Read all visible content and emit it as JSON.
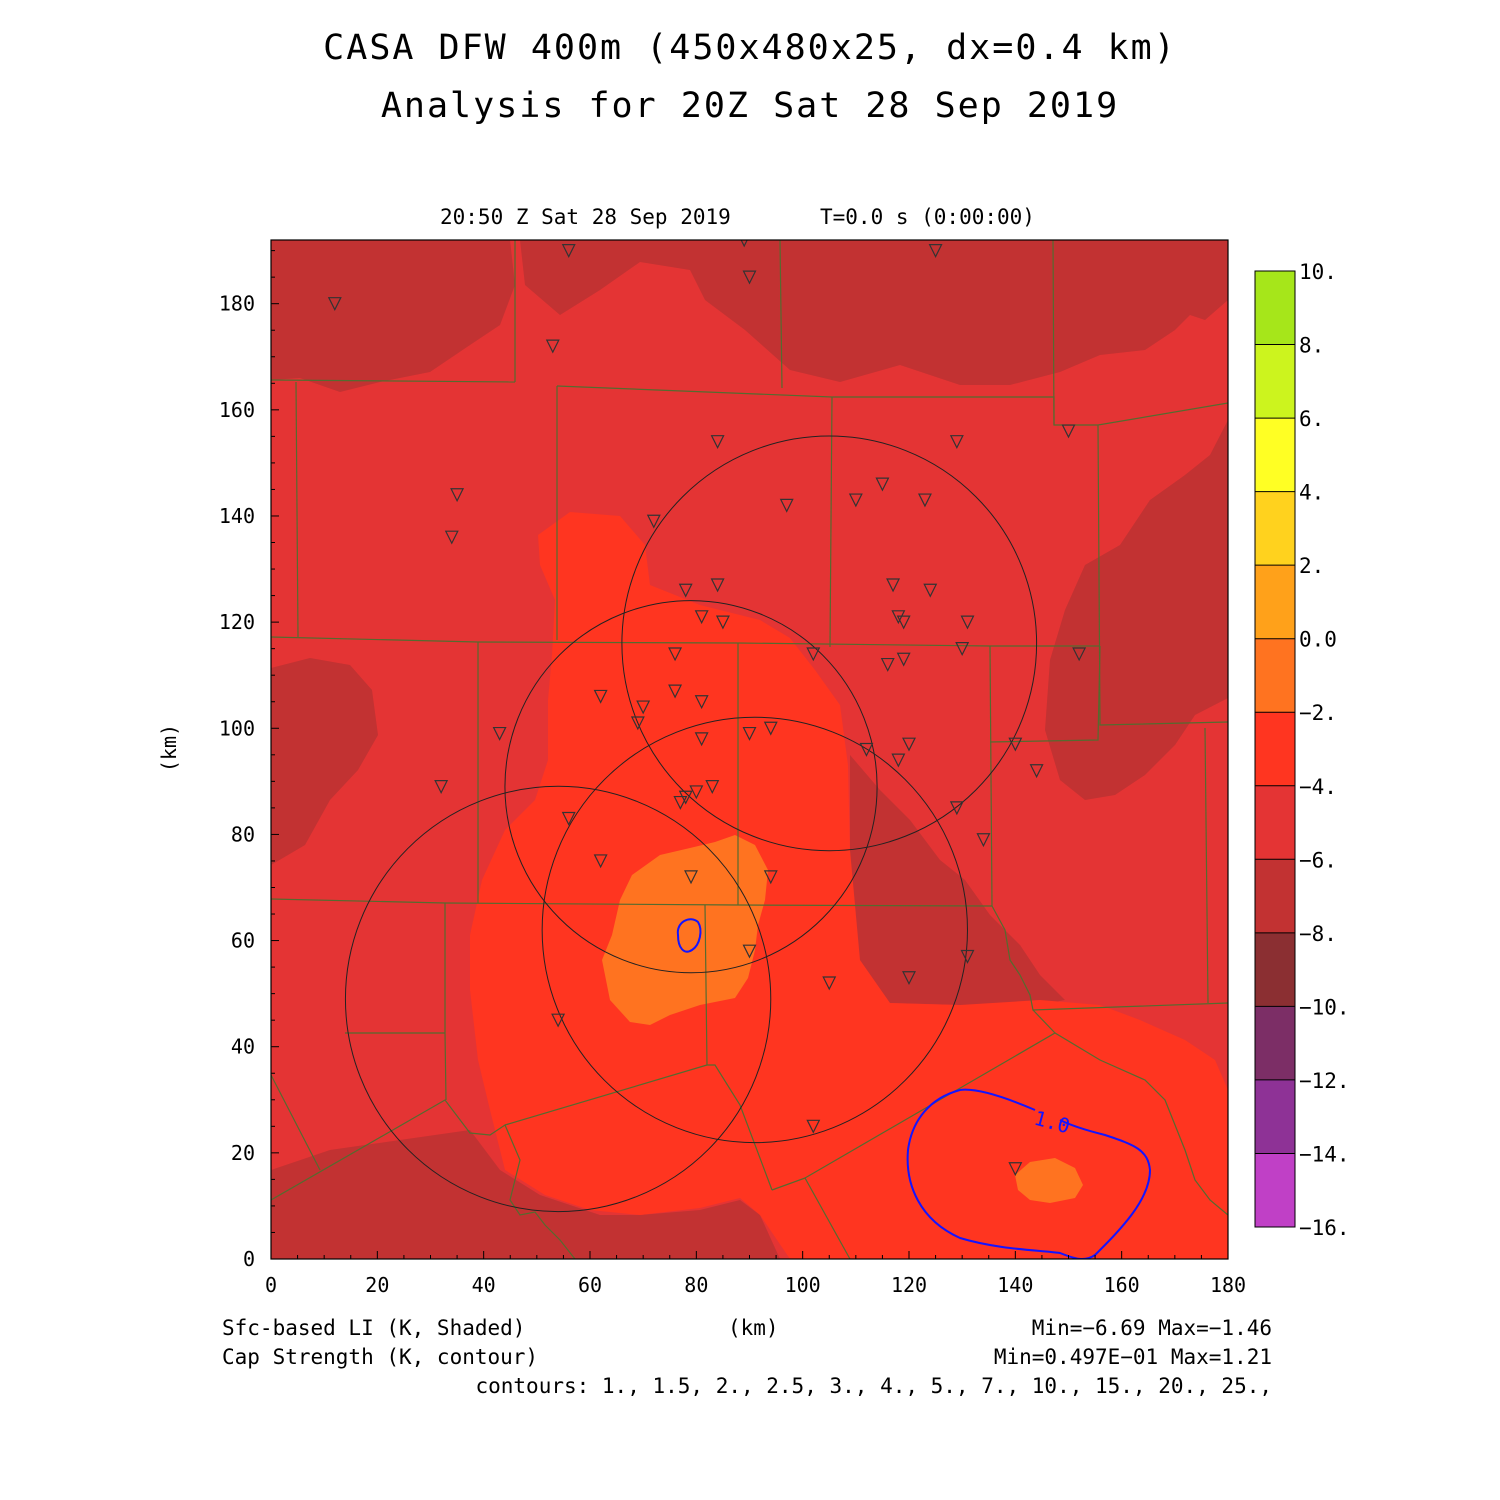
{
  "title_line1": "CASA DFW 400m (450x480x25, dx=0.4 km)",
  "title_line2": "Analysis for 20Z Sat 28 Sep 2019",
  "valid_time": "20:50 Z Sat 28 Sep 2019",
  "model_time": "T=0.0 s (0:00:00)",
  "x_axis": {
    "label": "(km)",
    "range": [
      0,
      180
    ],
    "ticks": [
      "0",
      "20",
      "40",
      "60",
      "80",
      "100",
      "120",
      "140",
      "160",
      "180"
    ]
  },
  "y_axis": {
    "label": "(km)",
    "range": [
      0,
      192
    ],
    "ticks": [
      "0",
      "20",
      "40",
      "60",
      "80",
      "100",
      "120",
      "140",
      "160",
      "180"
    ]
  },
  "colorbar": {
    "labels": [
      "10.",
      "8.",
      "6.",
      "4.",
      "2.",
      "0.0",
      "−2.",
      "−4.",
      "−6.",
      "−8.",
      "−10.",
      "−12.",
      "−14.",
      "−16."
    ],
    "colors": [
      "#a6e61a",
      "#ccf41e",
      "#ffff24",
      "#ffd21e",
      "#ffa11a",
      "#ff7320",
      "#ff3520",
      "#e43434",
      "#c23232",
      "#8b2f32",
      "#7c2e66",
      "#8e3296",
      "#c040c6",
      "#dc40e0"
    ]
  },
  "footer": {
    "field1": "Sfc-based LI (K, Shaded)",
    "field2": "Cap Strength (K, contour)",
    "xlabel": "(km)",
    "range1": "Min=−6.69 Max=−1.46",
    "range2": "Min=0.497E−01 Max=1.21",
    "contours": "contours: 1., 1.5, 2., 2.5, 3., 4., 5., 7., 10., 15., 20., 25.,"
  },
  "contour_label": "1.0",
  "map_colors": {
    "background": "#e43434",
    "dark": "#c23232",
    "orange_red": "#ff3520",
    "orange": "#ff7320",
    "light_orange": "#ffa11a",
    "county_lines": "#556b2f",
    "contour": "#1414ff"
  },
  "stations_km": [
    [
      12,
      180
    ],
    [
      56,
      190
    ],
    [
      89,
      192
    ],
    [
      90,
      185
    ],
    [
      125,
      190
    ],
    [
      53,
      172
    ],
    [
      35,
      144
    ],
    [
      34,
      136
    ],
    [
      72,
      139
    ],
    [
      84,
      154
    ],
    [
      97,
      142
    ],
    [
      110,
      143
    ],
    [
      115,
      146
    ],
    [
      123,
      143
    ],
    [
      129,
      154
    ],
    [
      150,
      156
    ],
    [
      78,
      126
    ],
    [
      84,
      127
    ],
    [
      81,
      121
    ],
    [
      85,
      120
    ],
    [
      117,
      127
    ],
    [
      124,
      126
    ],
    [
      118,
      121
    ],
    [
      119,
      120
    ],
    [
      131,
      120
    ],
    [
      130,
      115
    ],
    [
      152,
      114
    ],
    [
      102,
      114
    ],
    [
      116,
      112
    ],
    [
      119,
      113
    ],
    [
      76,
      114
    ],
    [
      62,
      106
    ],
    [
      70,
      104
    ],
    [
      69,
      101
    ],
    [
      76,
      107
    ],
    [
      81,
      105
    ],
    [
      43,
      99
    ],
    [
      81,
      98
    ],
    [
      90,
      99
    ],
    [
      94,
      100
    ],
    [
      112,
      96
    ],
    [
      118,
      94
    ],
    [
      120,
      97
    ],
    [
      140,
      97
    ],
    [
      144,
      92
    ],
    [
      32,
      89
    ],
    [
      83,
      89
    ],
    [
      80,
      88
    ],
    [
      78,
      87
    ],
    [
      77,
      86
    ],
    [
      56,
      83
    ],
    [
      129,
      85
    ],
    [
      134,
      79
    ],
    [
      62,
      75
    ],
    [
      79,
      72
    ],
    [
      94,
      72
    ],
    [
      90,
      58
    ],
    [
      131,
      57
    ],
    [
      105,
      52
    ],
    [
      120,
      53
    ],
    [
      54,
      45
    ],
    [
      102,
      25
    ],
    [
      140,
      17
    ]
  ],
  "radar_rings_km": [
    {
      "center": [
        105,
        116
      ],
      "radius": 39
    },
    {
      "center": [
        79,
        89
      ],
      "radius": 35
    },
    {
      "center": [
        91,
        62
      ],
      "radius": 40
    },
    {
      "center": [
        54,
        49
      ],
      "radius": 40
    }
  ]
}
